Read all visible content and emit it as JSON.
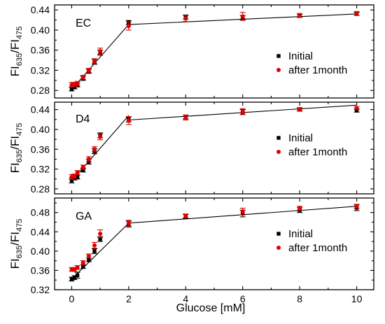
{
  "chart_data": [
    {
      "type": "scatter",
      "panel_label": "EC",
      "ylabel": {
        "base": "FI",
        "sub1": "635",
        "slash": "/FI",
        "sub2": "475"
      },
      "xlim": [
        -0.6,
        10.6
      ],
      "ylim": [
        0.265,
        0.45
      ],
      "yticks": [
        "0.28",
        "0.32",
        "0.36",
        "0.40",
        "0.44"
      ],
      "ytick_values": [
        0.28,
        0.32,
        0.36,
        0.4,
        0.44
      ],
      "legend_position": "center-right",
      "series": [
        {
          "name": "Initial",
          "color": "#000000",
          "marker": "square",
          "x": [
            0,
            0.1,
            0.2,
            0.4,
            0.6,
            0.8,
            1,
            2,
            4,
            6,
            8,
            10
          ],
          "y": [
            0.283,
            0.287,
            0.291,
            0.304,
            0.318,
            0.337,
            0.355,
            0.415,
            0.426,
            0.425,
            0.428,
            0.432
          ],
          "err": [
            0.004,
            0.004,
            0.004,
            0.004,
            0.004,
            0.005,
            0.005,
            0.004,
            0.004,
            0.004,
            0.003,
            0.003
          ]
        },
        {
          "name": "after 1month",
          "color": "#e00000",
          "marker": "circle",
          "x": [
            0,
            0.1,
            0.2,
            0.4,
            0.6,
            0.8,
            1,
            2,
            4,
            6,
            8,
            10
          ],
          "y": [
            0.291,
            0.292,
            0.294,
            0.306,
            0.32,
            0.338,
            0.358,
            0.408,
            0.423,
            0.427,
            0.429,
            0.433
          ],
          "err": [
            0.005,
            0.004,
            0.004,
            0.004,
            0.004,
            0.005,
            0.006,
            0.008,
            0.006,
            0.008,
            0.004,
            0.004
          ]
        }
      ],
      "fit_segments": [
        [
          [
            0,
            0.282
          ],
          [
            2,
            0.411
          ]
        ],
        [
          [
            2,
            0.411
          ],
          [
            10,
            0.432
          ]
        ]
      ]
    },
    {
      "type": "scatter",
      "panel_label": "D4",
      "ylabel": {
        "base": "FI",
        "sub1": "635",
        "slash": "/FI",
        "sub2": "475"
      },
      "xlim": [
        -0.6,
        10.6
      ],
      "ylim": [
        0.27,
        0.455
      ],
      "yticks": [
        "0.28",
        "0.32",
        "0.36",
        "0.40",
        "0.44"
      ],
      "ytick_values": [
        0.28,
        0.32,
        0.36,
        0.4,
        0.44
      ],
      "legend_position": "center-right",
      "series": [
        {
          "name": "Initial",
          "color": "#000000",
          "marker": "square",
          "x": [
            0,
            0.1,
            0.2,
            0.4,
            0.6,
            0.8,
            1,
            2,
            4,
            6,
            8,
            10
          ],
          "y": [
            0.297,
            0.302,
            0.304,
            0.318,
            0.335,
            0.356,
            0.388,
            0.42,
            0.425,
            0.435,
            0.44,
            0.438
          ],
          "err": [
            0.005,
            0.004,
            0.004,
            0.004,
            0.005,
            0.005,
            0.005,
            0.005,
            0.004,
            0.005,
            0.003,
            0.003
          ]
        },
        {
          "name": "after 1month",
          "color": "#e00000",
          "marker": "circle",
          "x": [
            0,
            0.1,
            0.2,
            0.4,
            0.6,
            0.8,
            1,
            2,
            4,
            6,
            8,
            10
          ],
          "y": [
            0.304,
            0.306,
            0.313,
            0.324,
            0.34,
            0.36,
            0.385,
            0.418,
            0.424,
            0.436,
            0.441,
            0.443
          ],
          "err": [
            0.005,
            0.004,
            0.004,
            0.004,
            0.005,
            0.005,
            0.006,
            0.008,
            0.005,
            0.006,
            0.003,
            0.003
          ]
        }
      ],
      "fit_segments": [
        [
          [
            0,
            0.296
          ],
          [
            2,
            0.428
          ]
        ],
        [
          [
            2,
            0.419
          ],
          [
            10,
            0.449
          ]
        ]
      ]
    },
    {
      "type": "scatter",
      "panel_label": "GA",
      "ylabel": {
        "base": "FI",
        "sub1": "635",
        "slash": "/FI",
        "sub2": "475"
      },
      "xlim": [
        -0.6,
        10.6
      ],
      "ylim": [
        0.32,
        0.51
      ],
      "yticks": [
        "0.32",
        "0.36",
        "0.40",
        "0.44",
        "0.48"
      ],
      "ytick_values": [
        0.32,
        0.36,
        0.4,
        0.44,
        0.48
      ],
      "xticks": [
        "0",
        "2",
        "4",
        "6",
        "8",
        "10"
      ],
      "xtick_values": [
        0,
        2,
        4,
        6,
        8,
        10
      ],
      "xlabel": "Glucose [mM]",
      "legend_position": "center-right",
      "series": [
        {
          "name": "Initial",
          "color": "#000000",
          "marker": "square",
          "x": [
            0,
            0.1,
            0.2,
            0.4,
            0.6,
            0.8,
            1,
            2,
            4,
            6,
            8,
            10
          ],
          "y": [
            0.342,
            0.345,
            0.35,
            0.368,
            0.382,
            0.4,
            0.425,
            0.456,
            0.472,
            0.478,
            0.485,
            0.49
          ],
          "err": [
            0.004,
            0.004,
            0.006,
            0.004,
            0.004,
            0.005,
            0.005,
            0.006,
            0.004,
            0.007,
            0.005,
            0.006
          ]
        },
        {
          "name": "after 1month",
          "color": "#e00000",
          "marker": "circle",
          "x": [
            0,
            0.1,
            0.2,
            0.4,
            0.6,
            0.8,
            1,
            2,
            4,
            6,
            8,
            10
          ],
          "y": [
            0.362,
            0.362,
            0.366,
            0.376,
            0.39,
            0.412,
            0.436,
            0.458,
            0.473,
            0.482,
            0.489,
            0.493
          ],
          "err": [
            0.004,
            0.004,
            0.004,
            0.004,
            0.004,
            0.006,
            0.008,
            0.006,
            0.004,
            0.007,
            0.004,
            0.004
          ]
        }
      ],
      "fit_segments": [
        [
          [
            0,
            0.342
          ],
          [
            2,
            0.458
          ]
        ],
        [
          [
            2,
            0.458
          ],
          [
            10,
            0.493
          ]
        ]
      ]
    }
  ]
}
